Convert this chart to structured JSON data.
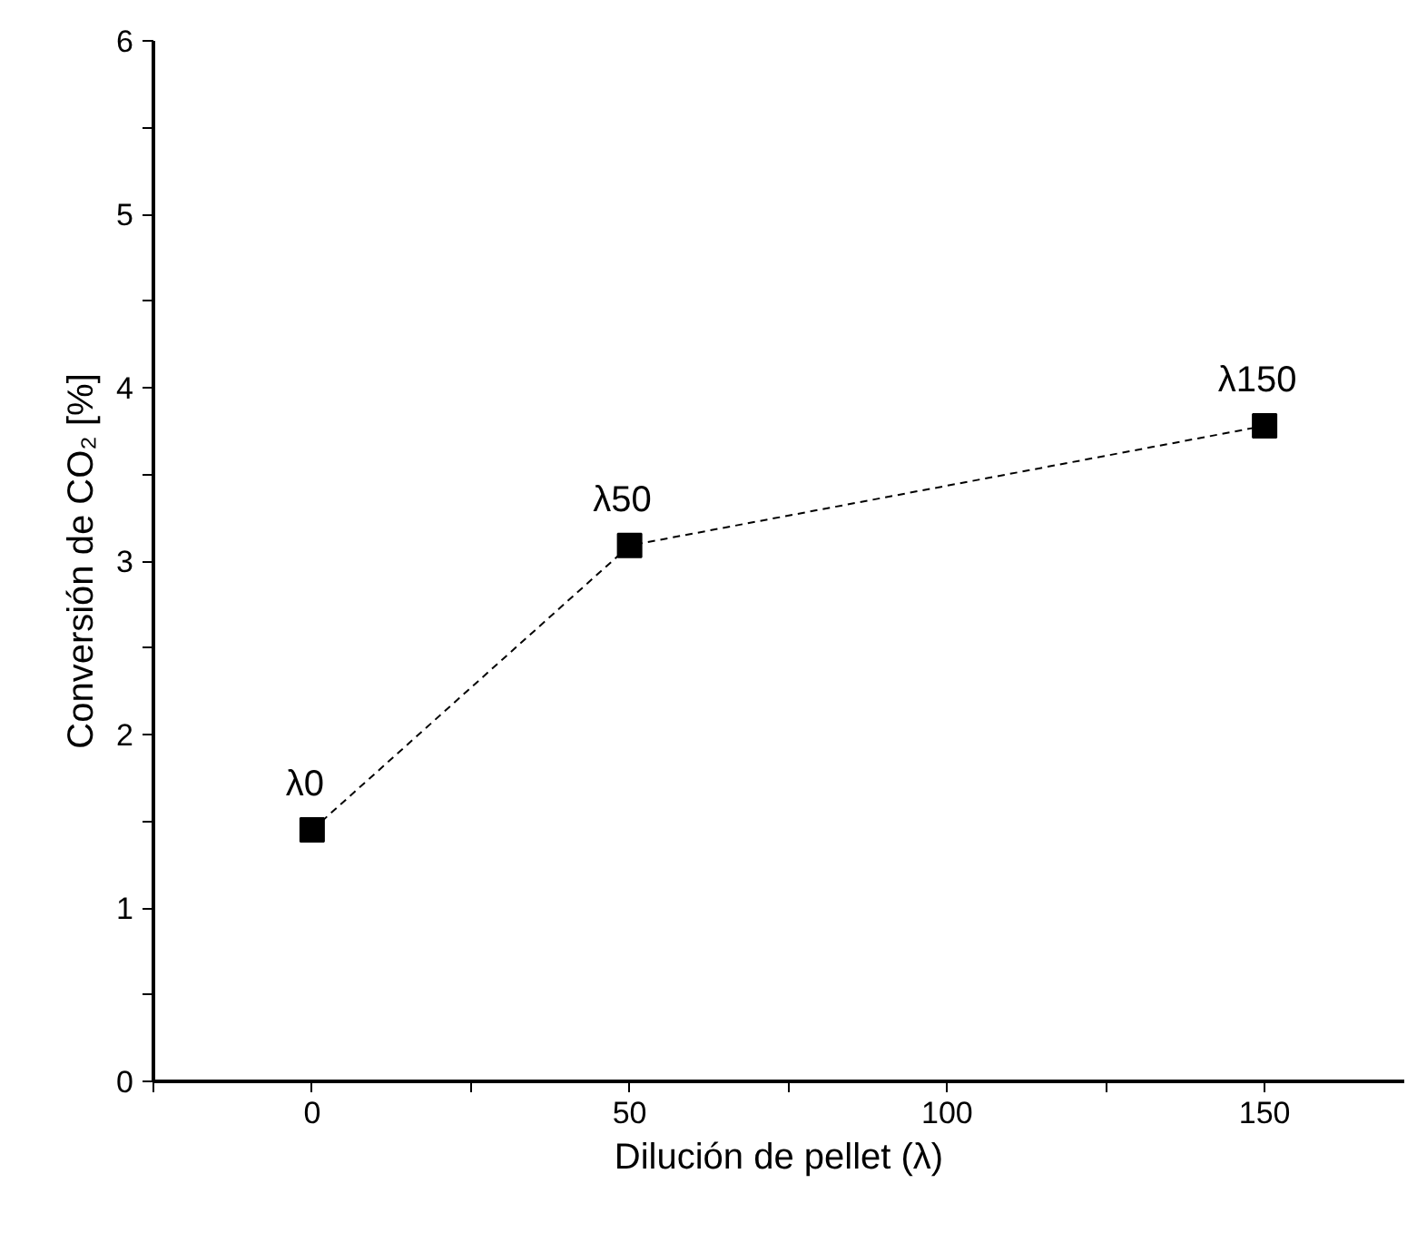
{
  "chart_data": {
    "type": "line",
    "xlabel": "Dilución de pellet (λ)",
    "ylabel": "Conversión de CO₂ [%]",
    "x": [
      0,
      50,
      150
    ],
    "series": [
      {
        "color": "#000000",
        "values": [
          1.45,
          3.09,
          3.78
        ]
      }
    ],
    "marker": "square",
    "line_style": "dashed",
    "grid": false,
    "xlim": [
      -25,
      172
    ],
    "ylim": [
      0,
      6
    ],
    "xticks": [
      {
        "value": -25,
        "label": null
      },
      0,
      {
        "value": 25,
        "label": null
      },
      50,
      {
        "value": 75,
        "label": null
      },
      100,
      {
        "value": 125,
        "label": null
      },
      150
    ],
    "yticks": [
      0,
      {
        "value": 0.5,
        "label": null
      },
      1,
      {
        "value": 1.5,
        "label": null
      },
      2,
      {
        "value": 2.5,
        "label": null
      },
      3,
      {
        "value": 3.5,
        "label": null
      },
      4,
      {
        "value": 4.5,
        "label": null
      },
      5,
      {
        "value": 5.5,
        "label": null
      },
      6
    ],
    "annotations": [
      {
        "text": "λ0",
        "x": 0,
        "y": 1.45
      },
      {
        "text": "λ50",
        "x": 50,
        "y": 3.09
      },
      {
        "text": "λ150",
        "x": 150,
        "y": 3.78
      }
    ]
  }
}
